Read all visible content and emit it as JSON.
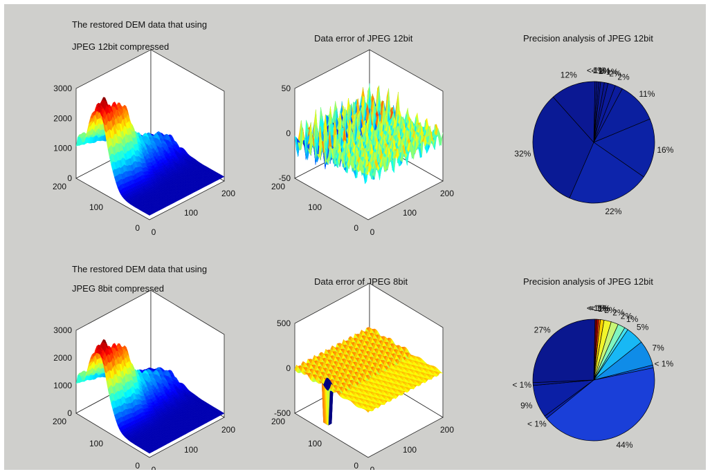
{
  "chart_data": [
    {
      "type": "surface3d",
      "title_lines": [
        "The restored DEM data that using",
        "JPEG 12bit compressed"
      ],
      "z_ticks": [
        "3000",
        "2000",
        "1000",
        "0"
      ],
      "y_ticks": [
        "200",
        "100",
        "0"
      ],
      "x_ticks": [
        "0",
        "100",
        "200"
      ],
      "zlim": [
        0,
        3000
      ],
      "xlim": [
        0,
        200
      ],
      "ylim": [
        0,
        200
      ],
      "colormap": "jet"
    },
    {
      "type": "surface3d",
      "title_lines": [
        "Data error of JPEG 12bit"
      ],
      "z_ticks": [
        "50",
        "0",
        "-50"
      ],
      "y_ticks": [
        "200",
        "100",
        "0"
      ],
      "x_ticks": [
        "0",
        "100",
        "200"
      ],
      "zlim": [
        -50,
        50
      ],
      "xlim": [
        0,
        200
      ],
      "ylim": [
        0,
        200
      ],
      "colormap": "jet"
    },
    {
      "type": "pie",
      "title": "Precision analysis of JPEG 12bit",
      "values": [
        0.5,
        0.5,
        0.5,
        1,
        1,
        2,
        2,
        11,
        16,
        22,
        32,
        12
      ],
      "labels": [
        "< 1%",
        "1%",
        "< 1%",
        "1%",
        "< 1%",
        "2%",
        "2%",
        "11%",
        "16%",
        "22%",
        "32%",
        "12%"
      ],
      "colors": [
        "#0a1590",
        "#0b1894",
        "#0a1590",
        "#0b1894",
        "#0a1590",
        "#0b1a99",
        "#0c1c9d",
        "#0b1f9f",
        "#0c22a5",
        "#0d24ab",
        "#0a1a95",
        "#0b1893"
      ]
    },
    {
      "type": "surface3d",
      "title_lines": [
        "The restored DEM data that using",
        "JPEG 8bit compressed"
      ],
      "z_ticks": [
        "3000",
        "2000",
        "1000",
        "0"
      ],
      "y_ticks": [
        "200",
        "100",
        "0"
      ],
      "x_ticks": [
        "0",
        "100",
        "200"
      ],
      "zlim": [
        0,
        3000
      ],
      "xlim": [
        0,
        200
      ],
      "ylim": [
        0,
        200
      ],
      "colormap": "jet"
    },
    {
      "type": "surface3d",
      "title_lines": [
        "Data error of JPEG 8bit"
      ],
      "z_ticks": [
        "500",
        "0",
        "-500"
      ],
      "y_ticks": [
        "200",
        "100",
        "0"
      ],
      "x_ticks": [
        "0",
        "100",
        "200"
      ],
      "zlim": [
        -500,
        500
      ],
      "xlim": [
        0,
        200
      ],
      "ylim": [
        0,
        200
      ],
      "colormap": "jet"
    },
    {
      "type": "pie",
      "title": "Precision analysis of JPEG 12bit",
      "values": [
        0.5,
        0.5,
        0.5,
        1,
        2,
        2,
        2,
        1,
        5,
        7,
        0.8,
        44,
        0.8,
        9,
        0.8,
        27
      ],
      "labels": [
        "< 1%",
        "< 1%",
        "< 1%",
        "1%",
        "2%",
        "2%",
        "2%",
        "1%",
        "5%",
        "7%",
        "< 1%",
        "44%",
        "< 1%",
        "9%",
        "< 1%",
        "27%"
      ],
      "colors": [
        "#7a0000",
        "#c80000",
        "#ff6a00",
        "#ffd400",
        "#f2f52a",
        "#c8f576",
        "#7ff5c0",
        "#43e0f0",
        "#18b8f5",
        "#0f8ce8",
        "#0a5ad8",
        "#1a3fd8",
        "#0a22b4",
        "#0b1fa6",
        "#0a1a98",
        "#0a178f"
      ]
    }
  ]
}
